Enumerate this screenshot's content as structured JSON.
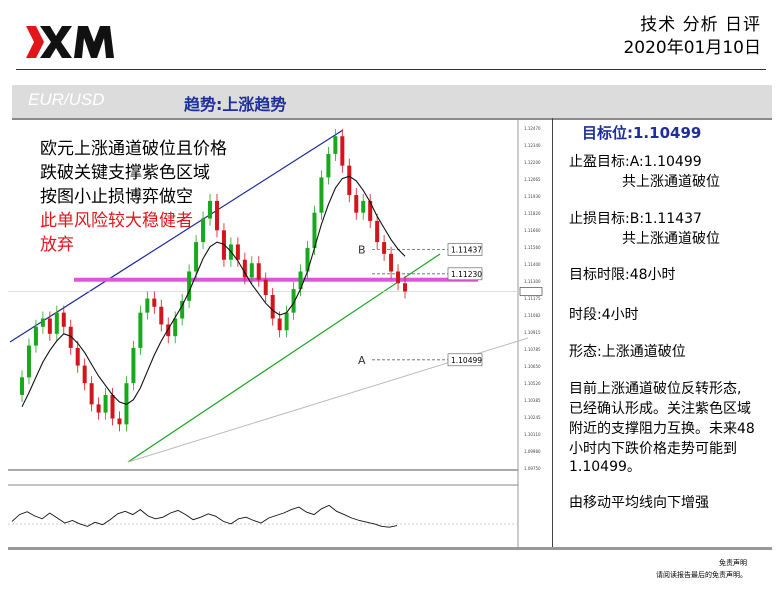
{
  "header": {
    "brand": "XM",
    "report_type": "技术 分析 日评",
    "date": "2020年01月10日"
  },
  "band": {
    "pair": "EUR/USD",
    "trend": "趋势:上涨趋势"
  },
  "annotation": {
    "line1": "欧元上涨通道破位且价格",
    "line2": "跌破关键支撑紫色区域",
    "line3": "按图小止损博弈做空",
    "warning1": "此单风险较大稳健者",
    "warning2": "放弃"
  },
  "right": {
    "target_label": "目标位:1.10499",
    "take_profit_label": "止盈目标:A:1.10499",
    "take_profit_note": "共上涨通道破位",
    "stop_loss_label": "止损目标:B:1.11437",
    "stop_loss_note": "共上涨通道破位",
    "time_limit": "目标时限:48小时",
    "period": "时段:4小时",
    "pattern": "形态:上涨通道破位",
    "desc1": "目前上涨通道破位反转形态,",
    "desc2": "已经确认形成。关注紫色区域",
    "desc3": "附近的支撑阻力互换。未来48",
    "desc4": "小时内下跌价格走势可能到",
    "desc5": "1.10499。",
    "ma_note": "由移动平均线向下增强"
  },
  "disclaimer": {
    "title": "免责声明",
    "text": "请阅读报告最后的免责声明。"
  },
  "chart_data": {
    "type": "line",
    "title": "",
    "ylim": [
      1.0963,
      1.1247
    ],
    "y_ticks": [
      "1.12470",
      "1.12340",
      "1.12200",
      "1.12065",
      "1.11930",
      "1.11820",
      "1.11660",
      "1.11560",
      "1.11400",
      "1.11300",
      "1.11175",
      "1.11082",
      "1.10915",
      "1.10785",
      "1.10650",
      "1.10520",
      "1.10385",
      "1.10245",
      "1.10110",
      "1.09980",
      "1.09750"
    ],
    "levels": [
      {
        "name": "B",
        "value": 1.11437,
        "label": "1.11437"
      },
      {
        "name": "",
        "value": 1.1123,
        "label": "1.11230"
      },
      {
        "name": "A",
        "value": 1.10499,
        "label": "1.10499"
      }
    ],
    "support_zone": 1.1118,
    "current_price": 1.1108,
    "close": [
      1.1035,
      1.1062,
      1.1078,
      1.1085,
      1.1072,
      1.109,
      1.1078,
      1.106,
      1.1045,
      1.103,
      1.1012,
      1.1005,
      1.102,
      1.1,
      1.0995,
      1.103,
      1.106,
      1.109,
      1.1102,
      1.1095,
      1.108,
      1.107,
      1.1085,
      1.11,
      1.1125,
      1.115,
      1.117,
      1.1185,
      1.116,
      1.1135,
      1.1148,
      1.1135,
      1.112,
      1.1132,
      1.1118,
      1.1105,
      1.1085,
      1.1075,
      1.109,
      1.111,
      1.1125,
      1.1145,
      1.1175,
      1.1205,
      1.1225,
      1.124,
      1.1215,
      1.119,
      1.1175,
      1.1185,
      1.1168,
      1.115,
      1.114,
      1.1125,
      1.1115,
      1.1108
    ],
    "ma": [
      1.101,
      1.1022,
      1.1035,
      1.1048,
      1.1058,
      1.1066,
      1.1072,
      1.107,
      1.1064,
      1.1056,
      1.1046,
      1.1036,
      1.1028,
      1.102,
      1.1014,
      1.1012,
      1.1016,
      1.1026,
      1.104,
      1.1054,
      1.1066,
      1.1076,
      1.1086,
      1.1096,
      1.1108,
      1.1122,
      1.1136,
      1.1146,
      1.115,
      1.1148,
      1.1142,
      1.1134,
      1.1124,
      1.1114,
      1.1106,
      1.1098,
      1.1092,
      1.1088,
      1.109,
      1.1098,
      1.111,
      1.1125,
      1.1145,
      1.1165,
      1.1182,
      1.1196,
      1.1204,
      1.1206,
      1.1202,
      1.1194,
      1.1184,
      1.1172,
      1.1162,
      1.1152,
      1.1144,
      1.1138
    ],
    "oscillator": [
      42,
      58,
      65,
      55,
      48,
      62,
      50,
      38,
      44,
      36,
      30,
      40,
      34,
      46,
      60,
      66,
      58,
      70,
      55,
      48,
      52,
      62,
      68,
      58,
      46,
      52,
      60,
      54,
      42,
      36,
      48,
      52,
      44,
      38,
      50,
      56,
      62,
      70,
      76,
      64,
      58,
      72,
      80,
      66,
      58,
      50,
      44,
      40,
      36,
      30,
      28,
      32
    ]
  },
  "colors": {
    "brand_red": "#e2151b",
    "accent_blue": "#1f2f9a",
    "zone": "#dd55dd",
    "up": "#18a81c",
    "down": "#d2151a",
    "channel_upper": "#1b2a9a",
    "channel_lower": "#18a81c"
  }
}
